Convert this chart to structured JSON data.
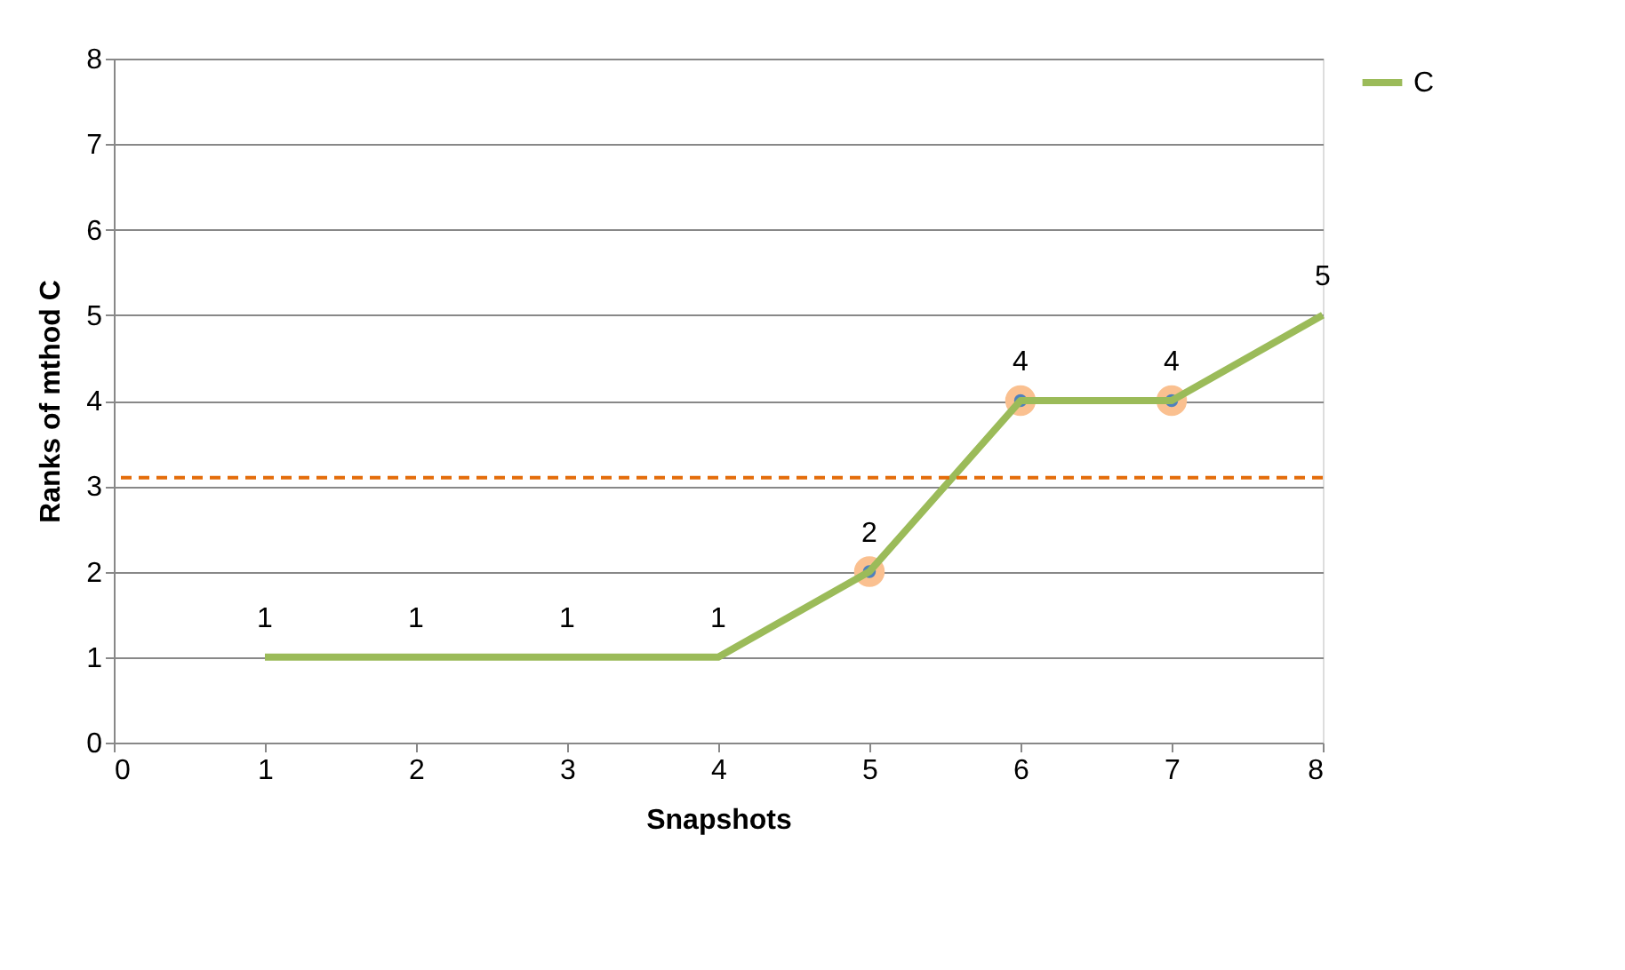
{
  "chart_data": {
    "type": "line",
    "xlabel": "Snapshots",
    "ylabel": "Ranks of mthod C",
    "x": [
      1,
      2,
      3,
      4,
      5,
      6,
      7,
      8
    ],
    "series": [
      {
        "name": "C",
        "color": "#9bbb59",
        "values": [
          1,
          1,
          1,
          1,
          2,
          4,
          4,
          5
        ],
        "value_labels": [
          "1",
          "1",
          "1",
          "1",
          null,
          null,
          null,
          "5"
        ]
      },
      {
        "type": "scatter",
        "color": "#fac090",
        "x": [
          5,
          6,
          7
        ],
        "values": [
          2,
          4,
          4
        ],
        "marker": "circle",
        "value_labels": [
          "2",
          "4",
          "4"
        ]
      }
    ],
    "xlim": [
      0,
      8
    ],
    "xticks": [
      0,
      1,
      2,
      3,
      4,
      5,
      6,
      7,
      8
    ],
    "ylim": [
      0,
      8
    ],
    "yticks": [
      0,
      1,
      2,
      3,
      4,
      5,
      6,
      7,
      8
    ],
    "grid": "y",
    "legend": "right",
    "marker": "none",
    "line_style": "solid",
    "ref_lines": [
      {
        "axis": "y",
        "value": 3.1,
        "color": "#e46c0a",
        "line_style": "dashed"
      }
    ]
  }
}
